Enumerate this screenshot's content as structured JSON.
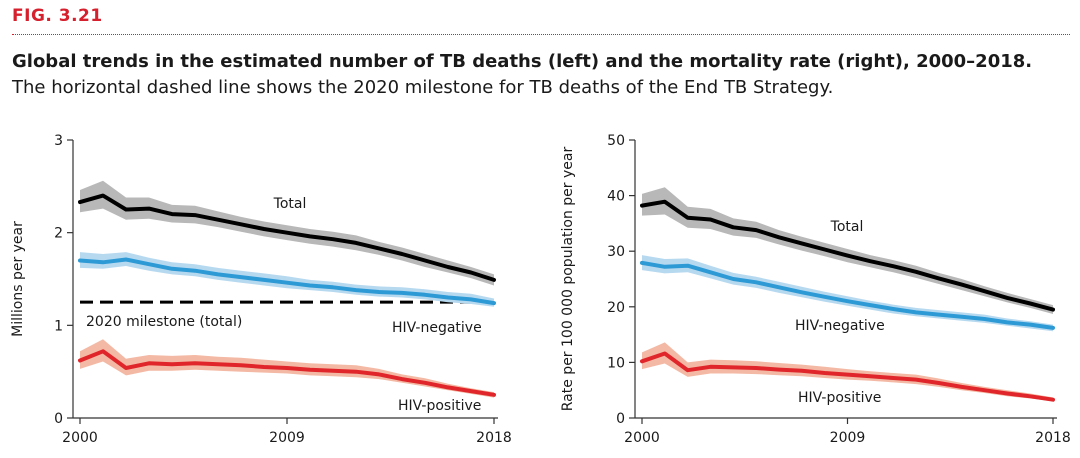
{
  "figure": {
    "label": "FIG. 3.21",
    "title": "Global trends in the estimated number of TB deaths (left) and the mortality rate (right), 2000–2018.",
    "subtitle": "The horizontal dashed line shows the 2020 milestone for TB deaths of the End TB Strategy."
  },
  "colors": {
    "total": "#000000",
    "total_band": "#b8b8b8",
    "hiv_negative": "#2d9ad6",
    "hiv_negative_band": "#b7d9f0",
    "hiv_positive": "#e0262a",
    "hiv_positive_band": "#f4b9a4",
    "accent": "#d6202d"
  },
  "chart_data": [
    {
      "type": "line",
      "ylabel": "Millions per year",
      "xlabel": "",
      "ylim": [
        0,
        3
      ],
      "yticks": [
        0,
        1,
        2,
        3
      ],
      "xticks": [
        2000,
        2009,
        2018
      ],
      "x": [
        2000,
        2001,
        2002,
        2003,
        2004,
        2005,
        2006,
        2007,
        2008,
        2009,
        2010,
        2011,
        2012,
        2013,
        2014,
        2015,
        2016,
        2017,
        2018
      ],
      "series": [
        {
          "name": "Total",
          "key": "total",
          "values": [
            2.33,
            2.4,
            2.25,
            2.26,
            2.2,
            2.19,
            2.14,
            2.09,
            2.04,
            2.0,
            1.96,
            1.93,
            1.89,
            1.83,
            1.77,
            1.7,
            1.63,
            1.57,
            1.49
          ],
          "lower": [
            2.22,
            2.26,
            2.14,
            2.15,
            2.11,
            2.1,
            2.06,
            2.01,
            1.96,
            1.92,
            1.88,
            1.85,
            1.81,
            1.76,
            1.7,
            1.63,
            1.57,
            1.51,
            1.43
          ],
          "upper": [
            2.46,
            2.56,
            2.38,
            2.38,
            2.3,
            2.29,
            2.23,
            2.17,
            2.12,
            2.08,
            2.04,
            2.01,
            1.97,
            1.9,
            1.84,
            1.77,
            1.7,
            1.63,
            1.55
          ]
        },
        {
          "name": "HIV-negative",
          "key": "hiv_negative",
          "values": [
            1.7,
            1.68,
            1.71,
            1.66,
            1.61,
            1.59,
            1.55,
            1.52,
            1.49,
            1.46,
            1.43,
            1.41,
            1.38,
            1.36,
            1.35,
            1.33,
            1.3,
            1.28,
            1.24
          ],
          "lower": [
            1.62,
            1.61,
            1.64,
            1.59,
            1.55,
            1.53,
            1.49,
            1.46,
            1.43,
            1.4,
            1.38,
            1.36,
            1.33,
            1.31,
            1.3,
            1.28,
            1.25,
            1.23,
            1.2
          ],
          "upper": [
            1.79,
            1.77,
            1.79,
            1.73,
            1.68,
            1.66,
            1.62,
            1.59,
            1.56,
            1.53,
            1.49,
            1.47,
            1.44,
            1.42,
            1.41,
            1.39,
            1.36,
            1.34,
            1.29
          ]
        },
        {
          "name": "HIV-positive",
          "key": "hiv_positive",
          "values": [
            0.62,
            0.72,
            0.54,
            0.59,
            0.58,
            0.59,
            0.58,
            0.57,
            0.55,
            0.54,
            0.52,
            0.51,
            0.5,
            0.47,
            0.42,
            0.38,
            0.33,
            0.29,
            0.25
          ],
          "lower": [
            0.53,
            0.61,
            0.46,
            0.51,
            0.51,
            0.52,
            0.51,
            0.5,
            0.49,
            0.48,
            0.46,
            0.45,
            0.44,
            0.42,
            0.38,
            0.34,
            0.3,
            0.26,
            0.22
          ],
          "upper": [
            0.72,
            0.85,
            0.64,
            0.68,
            0.67,
            0.68,
            0.66,
            0.65,
            0.63,
            0.61,
            0.59,
            0.58,
            0.57,
            0.53,
            0.47,
            0.43,
            0.37,
            0.32,
            0.28
          ]
        }
      ],
      "milestone": {
        "label": "2020 milestone (total)",
        "value": 1.25
      },
      "annotations": {
        "total": "Total",
        "hiv_negative": "HIV-negative",
        "hiv_positive": "HIV-positive"
      }
    },
    {
      "type": "line",
      "ylabel": "Rate per 100 000 population per year",
      "xlabel": "",
      "ylim": [
        0,
        50
      ],
      "yticks": [
        0,
        10,
        20,
        30,
        40,
        50
      ],
      "xticks": [
        2000,
        2009,
        2018
      ],
      "x": [
        2000,
        2001,
        2002,
        2003,
        2004,
        2005,
        2006,
        2007,
        2008,
        2009,
        2010,
        2011,
        2012,
        2013,
        2014,
        2015,
        2016,
        2017,
        2018
      ],
      "series": [
        {
          "name": "Total",
          "key": "total",
          "values": [
            38.2,
            38.9,
            36.0,
            35.7,
            34.3,
            33.8,
            32.5,
            31.4,
            30.3,
            29.2,
            28.2,
            27.3,
            26.3,
            25.1,
            24.0,
            22.8,
            21.6,
            20.6,
            19.5
          ],
          "lower": [
            36.4,
            36.6,
            34.2,
            34.0,
            32.8,
            32.4,
            31.2,
            30.1,
            29.1,
            28.0,
            27.1,
            26.2,
            25.2,
            24.1,
            23.0,
            21.9,
            20.8,
            19.8,
            18.7
          ],
          "upper": [
            40.3,
            41.5,
            38.0,
            37.6,
            35.9,
            35.3,
            33.8,
            32.6,
            31.5,
            30.4,
            29.3,
            28.4,
            27.4,
            26.1,
            25.0,
            23.7,
            22.5,
            21.4,
            20.3
          ]
        },
        {
          "name": "HIV-negative",
          "key": "hiv_negative",
          "values": [
            27.9,
            27.2,
            27.4,
            26.2,
            25.0,
            24.4,
            23.5,
            22.6,
            21.8,
            21.0,
            20.3,
            19.6,
            19.0,
            18.6,
            18.2,
            17.8,
            17.2,
            16.8,
            16.2
          ],
          "lower": [
            26.6,
            26.0,
            26.2,
            25.1,
            24.0,
            23.4,
            22.5,
            21.7,
            20.9,
            20.2,
            19.5,
            18.8,
            18.3,
            17.9,
            17.5,
            17.1,
            16.6,
            16.1,
            15.6
          ],
          "upper": [
            29.3,
            28.6,
            28.7,
            27.4,
            26.1,
            25.4,
            24.5,
            23.6,
            22.7,
            21.9,
            21.1,
            20.4,
            19.8,
            19.4,
            19.0,
            18.6,
            17.9,
            17.4,
            16.8
          ]
        },
        {
          "name": "HIV-positive",
          "key": "hiv_positive",
          "values": [
            10.2,
            11.6,
            8.6,
            9.2,
            9.1,
            9.0,
            8.7,
            8.5,
            8.1,
            7.8,
            7.5,
            7.2,
            6.9,
            6.3,
            5.6,
            5.0,
            4.4,
            3.9,
            3.3
          ],
          "lower": [
            8.8,
            9.8,
            7.4,
            8.0,
            8.0,
            7.9,
            7.7,
            7.5,
            7.2,
            6.9,
            6.7,
            6.4,
            6.1,
            5.6,
            5.0,
            4.5,
            3.9,
            3.5,
            3.0
          ],
          "upper": [
            11.8,
            13.6,
            10.0,
            10.5,
            10.4,
            10.2,
            9.9,
            9.6,
            9.2,
            8.8,
            8.4,
            8.1,
            7.8,
            7.1,
            6.3,
            5.6,
            5.0,
            4.4,
            3.7
          ]
        }
      ],
      "annotations": {
        "total": "Total",
        "hiv_negative": "HIV-negative",
        "hiv_positive": "HIV-positive"
      }
    }
  ]
}
